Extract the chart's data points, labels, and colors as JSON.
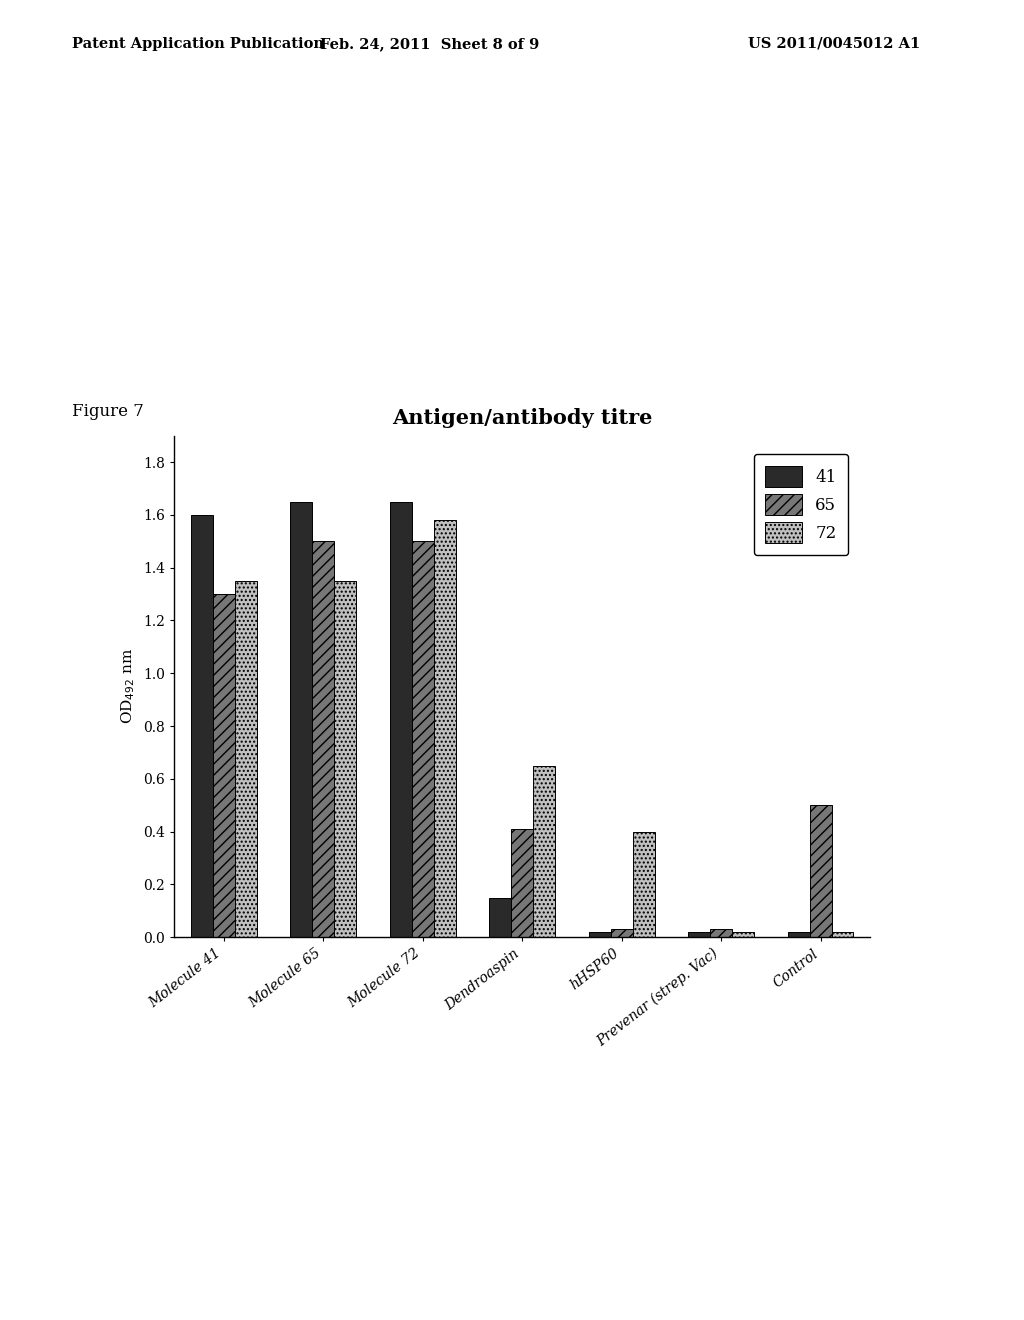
{
  "title": "Antigen/antibody titre",
  "categories": [
    "Molecule 41",
    "Molecule 65",
    "Molecule 72",
    "Dendroaspin",
    "hHSP60",
    "Prevenar (strep. Vac)",
    "Control"
  ],
  "series_labels": [
    "41",
    "65",
    "72"
  ],
  "series_colors": [
    "#2a2a2a",
    "#777777",
    "#c0c0c0"
  ],
  "series_hatches": [
    "",
    "///",
    "...."
  ],
  "data": {
    "41": [
      1.6,
      1.65,
      1.65,
      0.15,
      0.02,
      0.02,
      0.02
    ],
    "65": [
      1.3,
      1.5,
      1.5,
      0.41,
      0.03,
      0.03,
      0.5
    ],
    "72": [
      1.35,
      1.35,
      1.58,
      0.65,
      0.4,
      0.02,
      0.02
    ]
  },
  "ylim": [
    0,
    1.9
  ],
  "yticks": [
    0.0,
    0.2,
    0.4,
    0.6,
    0.8,
    1.0,
    1.2,
    1.4,
    1.6,
    1.8
  ],
  "bg_color": "#ffffff",
  "header_left": "Patent Application Publication",
  "header_mid": "Feb. 24, 2011  Sheet 8 of 9",
  "header_right": "US 2011/0045012 A1",
  "figure_label": "Figure 7",
  "bar_width": 0.22
}
